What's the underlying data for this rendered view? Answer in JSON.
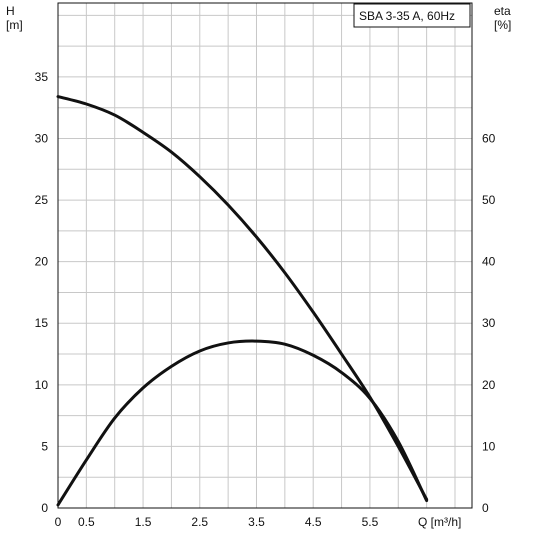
{
  "chart_data": {
    "type": "line",
    "title": "SBA 3-35 A, 60Hz",
    "x_axis": {
      "label": "Q [m³/h]",
      "range": [
        0,
        7.3
      ],
      "ticks": [
        0,
        0.5,
        1.5,
        2.5,
        3.5,
        4.5,
        5.5
      ],
      "tick_labels": [
        "0",
        "0.5",
        "1.5",
        "2.5",
        "3.5",
        "4.5",
        "5.5"
      ],
      "grid_step": 0.5
    },
    "y_left_axis": {
      "label_top": "H",
      "label_unit": "[m]",
      "range": [
        0,
        41
      ],
      "ticks": [
        0,
        5,
        10,
        15,
        20,
        25,
        30,
        35
      ],
      "tick_labels": [
        "0",
        "5",
        "10",
        "15",
        "20",
        "25",
        "30",
        "35"
      ],
      "grid_step": 2.5
    },
    "y_right_axis": {
      "label_top": "eta",
      "label_unit": "[%]",
      "range": [
        0,
        82
      ],
      "ticks": [
        0,
        10,
        20,
        30,
        40,
        50,
        60
      ],
      "tick_labels": [
        "0",
        "10",
        "20",
        "30",
        "40",
        "50",
        "60"
      ]
    },
    "grid": true,
    "legend_position": "top-right",
    "series": [
      {
        "axis": "left",
        "x": [
          0,
          0.5,
          1.0,
          1.5,
          2.0,
          2.5,
          3.0,
          3.5,
          4.0,
          4.5,
          5.0,
          5.5,
          6.0,
          6.5
        ],
        "y": [
          33.4,
          32.8,
          31.9,
          30.5,
          28.9,
          26.9,
          24.6,
          22.0,
          19.1,
          15.9,
          12.5,
          9.0,
          5.0,
          0.7
        ]
      },
      {
        "axis": "right",
        "x": [
          0,
          0.5,
          1.0,
          1.5,
          2.0,
          2.5,
          3.0,
          3.5,
          4.0,
          4.5,
          5.0,
          5.5,
          6.0,
          6.5
        ],
        "y": [
          0.5,
          7.8,
          14.6,
          19.5,
          23.0,
          25.5,
          26.8,
          27.1,
          26.6,
          24.8,
          22.0,
          17.8,
          10.8,
          1.2
        ]
      }
    ]
  }
}
